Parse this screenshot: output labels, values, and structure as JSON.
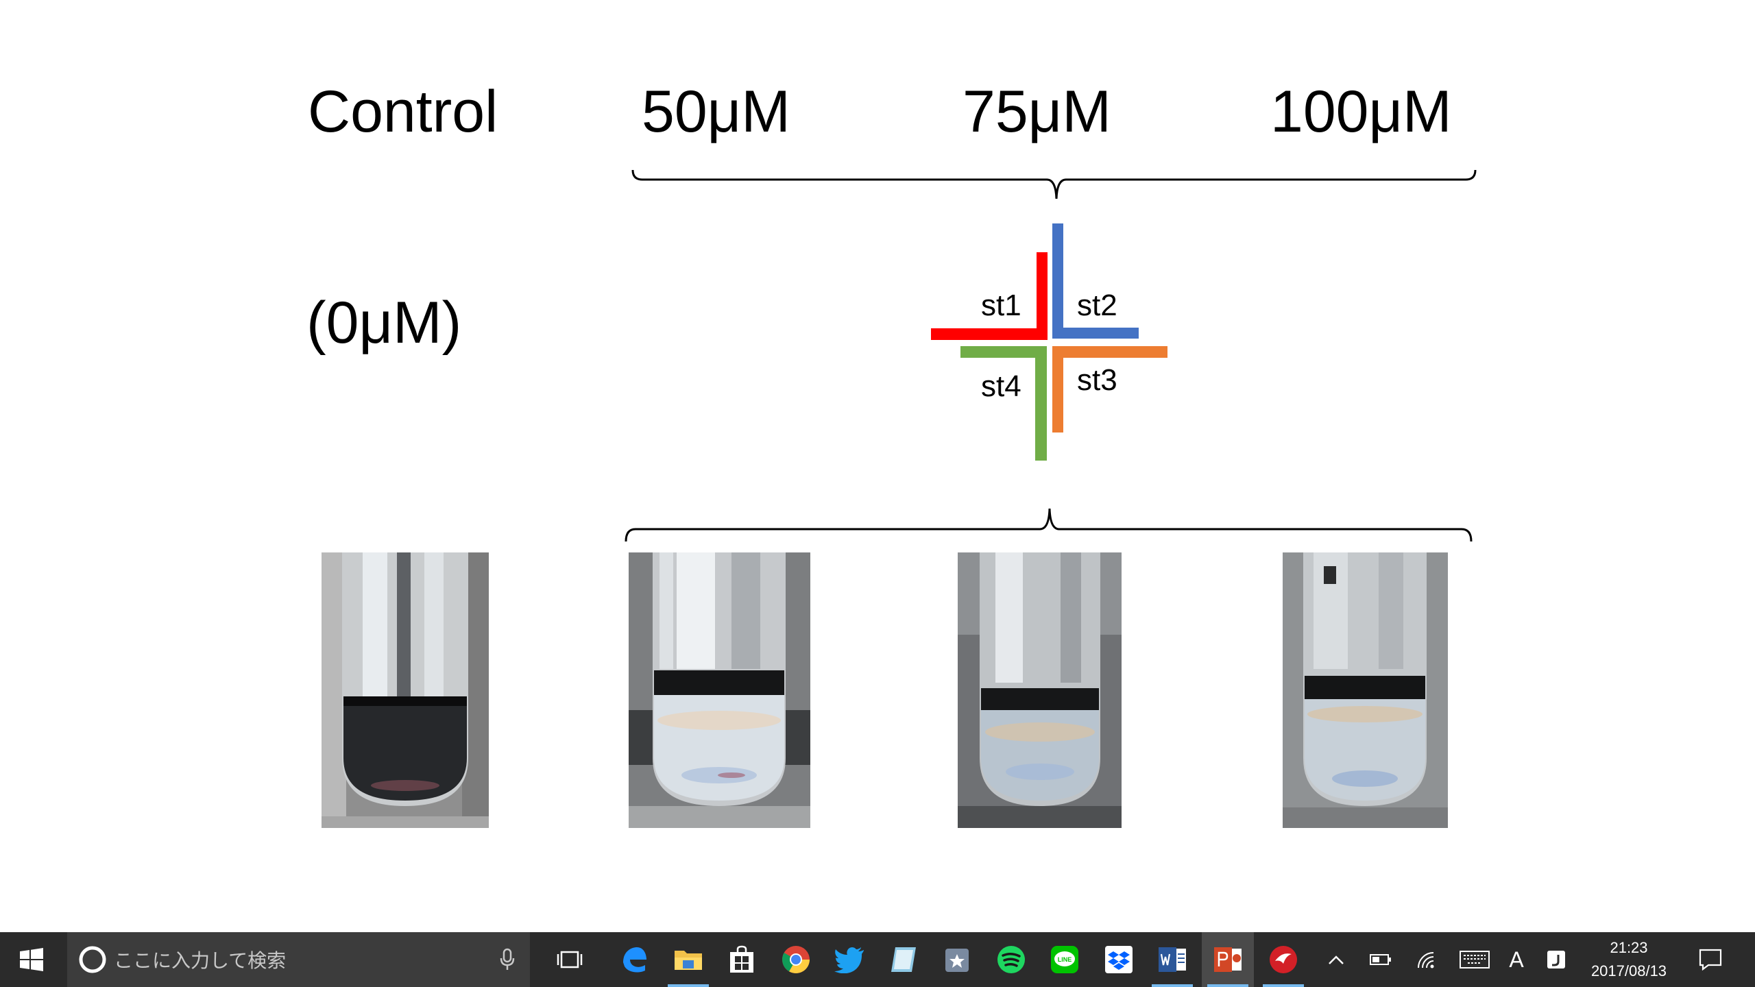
{
  "slide": {
    "headers": {
      "control": "Control",
      "c50": "50μM",
      "c75": "75μM",
      "c100": "100μM",
      "zero": "(0μM)"
    },
    "strains": [
      {
        "label": "st1",
        "color": "#ff0000"
      },
      {
        "label": "st2",
        "color": "#4472c4"
      },
      {
        "label": "st3",
        "color": "#ed7d31"
      },
      {
        "label": "st4",
        "color": "#70ad47"
      }
    ]
  },
  "taskbar": {
    "search_placeholder": "ここに入力して検索",
    "apps": [
      "task-view",
      "edge",
      "file-explorer",
      "store",
      "chrome",
      "twitter",
      "notes",
      "photos",
      "spotify",
      "line",
      "dropbox",
      "word",
      "powerpoint",
      "security"
    ],
    "line_label": "LINE",
    "ime_indicator": "A",
    "time": "21:23",
    "date": "2017/08/13"
  }
}
